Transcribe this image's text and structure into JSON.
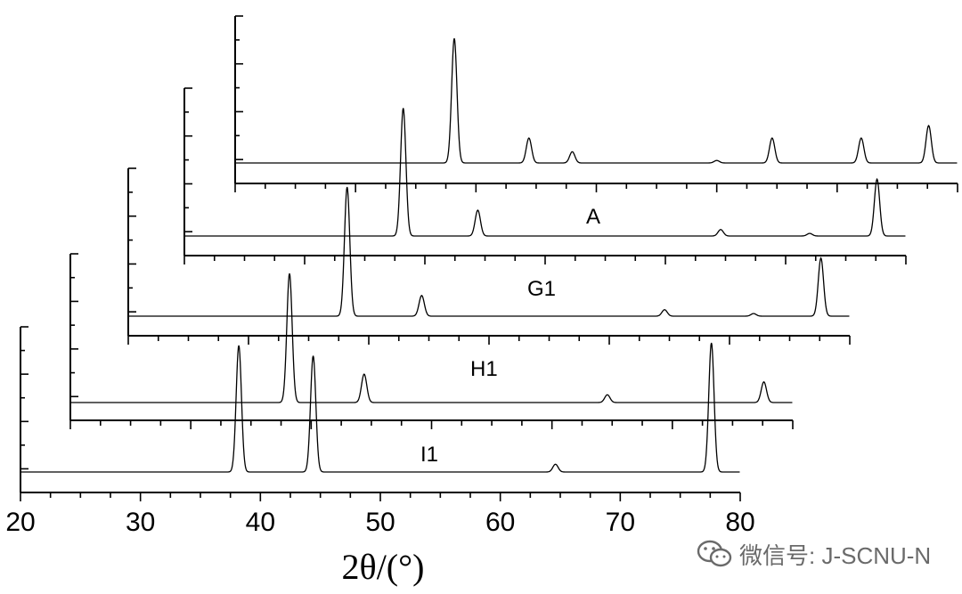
{
  "chart_data": {
    "type": "line",
    "title": "",
    "xlabel": "2θ/(°)",
    "ylabel": "",
    "xlim": [
      20,
      80
    ],
    "x_ticks": [
      "20",
      "30",
      "40",
      "50",
      "60",
      "70",
      "80"
    ],
    "layout": "stacked-3d-waterfall",
    "grid": false,
    "series": [
      {
        "name": "I1",
        "peaks": [
          {
            "x": 38.2,
            "h": 0.98
          },
          {
            "x": 44.4,
            "h": 0.9
          },
          {
            "x": 64.6,
            "h": 0.06
          },
          {
            "x": 77.6,
            "h": 1.0
          }
        ]
      },
      {
        "name": "H1",
        "peaks": [
          {
            "x": 38.2,
            "h": 1.0
          },
          {
            "x": 44.4,
            "h": 0.22
          },
          {
            "x": 64.6,
            "h": 0.06
          },
          {
            "x": 77.6,
            "h": 0.16
          }
        ]
      },
      {
        "name": "G1",
        "peaks": [
          {
            "x": 38.2,
            "h": 1.0
          },
          {
            "x": 44.4,
            "h": 0.16
          },
          {
            "x": 64.6,
            "h": 0.05
          },
          {
            "x": 72.0,
            "h": 0.02
          },
          {
            "x": 77.6,
            "h": 0.45
          }
        ]
      },
      {
        "name": "A",
        "peaks": [
          {
            "x": 38.2,
            "h": 0.99
          },
          {
            "x": 44.4,
            "h": 0.2
          },
          {
            "x": 64.6,
            "h": 0.05
          },
          {
            "x": 72.0,
            "h": 0.02
          },
          {
            "x": 77.6,
            "h": 0.44
          }
        ]
      },
      {
        "name": "",
        "peaks": [
          {
            "x": 38.2,
            "h": 1.0
          },
          {
            "x": 44.4,
            "h": 0.2
          },
          {
            "x": 48.0,
            "h": 0.09
          },
          {
            "x": 60.0,
            "h": 0.02
          },
          {
            "x": 64.6,
            "h": 0.2
          },
          {
            "x": 72.0,
            "h": 0.2
          },
          {
            "x": 77.6,
            "h": 0.3
          }
        ]
      }
    ]
  },
  "watermark": {
    "text": "微信号: J-SCNU-N",
    "icon": "wechat-icon"
  }
}
